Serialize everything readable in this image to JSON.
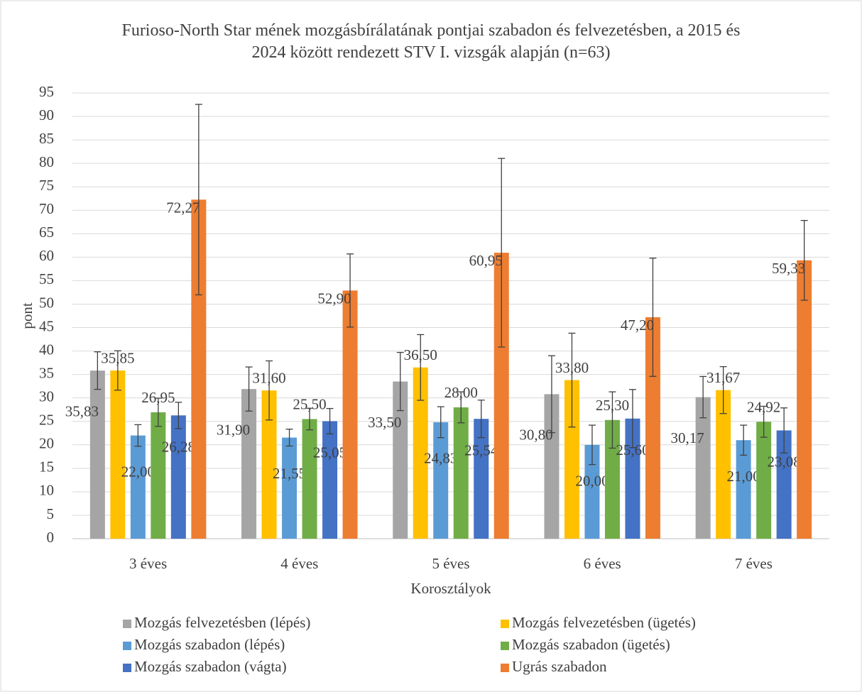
{
  "chart_data": {
    "type": "bar",
    "title": "Furioso-North Star mének mozgásbírálatának pontjai szabadon és felvezetésben, a 2015 és 2024 között rendezett STV I. vizsgák alapján (n=63)",
    "x_label": "Korosztályok",
    "y_label": "pont",
    "categories": [
      "3 éves",
      "4 éves",
      "5 éves",
      "6 éves",
      "7 éves"
    ],
    "ylim": [
      0,
      95
    ],
    "yticks": [
      0,
      5,
      10,
      15,
      20,
      25,
      30,
      35,
      40,
      45,
      50,
      55,
      60,
      65,
      70,
      75,
      80,
      85,
      90,
      95
    ],
    "grid": true,
    "legend": "bottom",
    "series": [
      {
        "name": "Mozgás felvezetésben (lépés)",
        "color": "#a5a5a5",
        "values": [
          35.83,
          31.9,
          33.5,
          30.8,
          30.17
        ],
        "value_labels": [
          "35,83",
          "31,90",
          "33,50",
          "30,80",
          "30,17"
        ],
        "errors": [
          4.0,
          4.7,
          6.2,
          8.2,
          4.4
        ]
      },
      {
        "name": "Mozgás felvezetésben (ügetés)",
        "color": "#ffc000",
        "values": [
          35.85,
          31.6,
          36.5,
          33.8,
          31.67
        ],
        "value_labels": [
          "35,85",
          "31,60",
          "36,50",
          "33,80",
          "31,67"
        ],
        "errors": [
          4.2,
          6.3,
          7.0,
          10.0,
          5.0
        ]
      },
      {
        "name": "Mozgás szabadon (lépés)",
        "color": "#5b9bd5",
        "values": [
          22.0,
          21.55,
          24.83,
          20.0,
          21.0
        ],
        "value_labels": [
          "22,00",
          "21,55",
          "24,83",
          "20,00",
          "21,00"
        ],
        "errors": [
          2.3,
          1.8,
          3.3,
          4.2,
          3.2
        ]
      },
      {
        "name": "Mozgás szabadon (ügetés)",
        "color": "#70ad47",
        "values": [
          26.95,
          25.5,
          28.0,
          25.3,
          24.92
        ],
        "value_labels": [
          "26,95",
          "25,50",
          "28,00",
          "25,30",
          "24,92"
        ],
        "errors": [
          3.0,
          2.3,
          3.3,
          6.0,
          3.3
        ]
      },
      {
        "name": "Mozgás szabadon (vágta)",
        "color": "#4472c4",
        "values": [
          26.28,
          25.05,
          25.54,
          25.6,
          23.08
        ],
        "value_labels": [
          "26,28",
          "25,05",
          "25,54",
          "25,60",
          "23,08"
        ],
        "errors": [
          2.8,
          2.7,
          4.0,
          6.2,
          4.8
        ]
      },
      {
        "name": "Ugrás szabadon",
        "color": "#ed7d31",
        "values": [
          72.27,
          52.9,
          60.95,
          47.2,
          59.33
        ],
        "value_labels": [
          "72,27",
          "52,90",
          "60,95",
          "47,20",
          "59,33"
        ],
        "errors": [
          20.3,
          7.8,
          20.1,
          12.6,
          8.5
        ]
      }
    ]
  }
}
